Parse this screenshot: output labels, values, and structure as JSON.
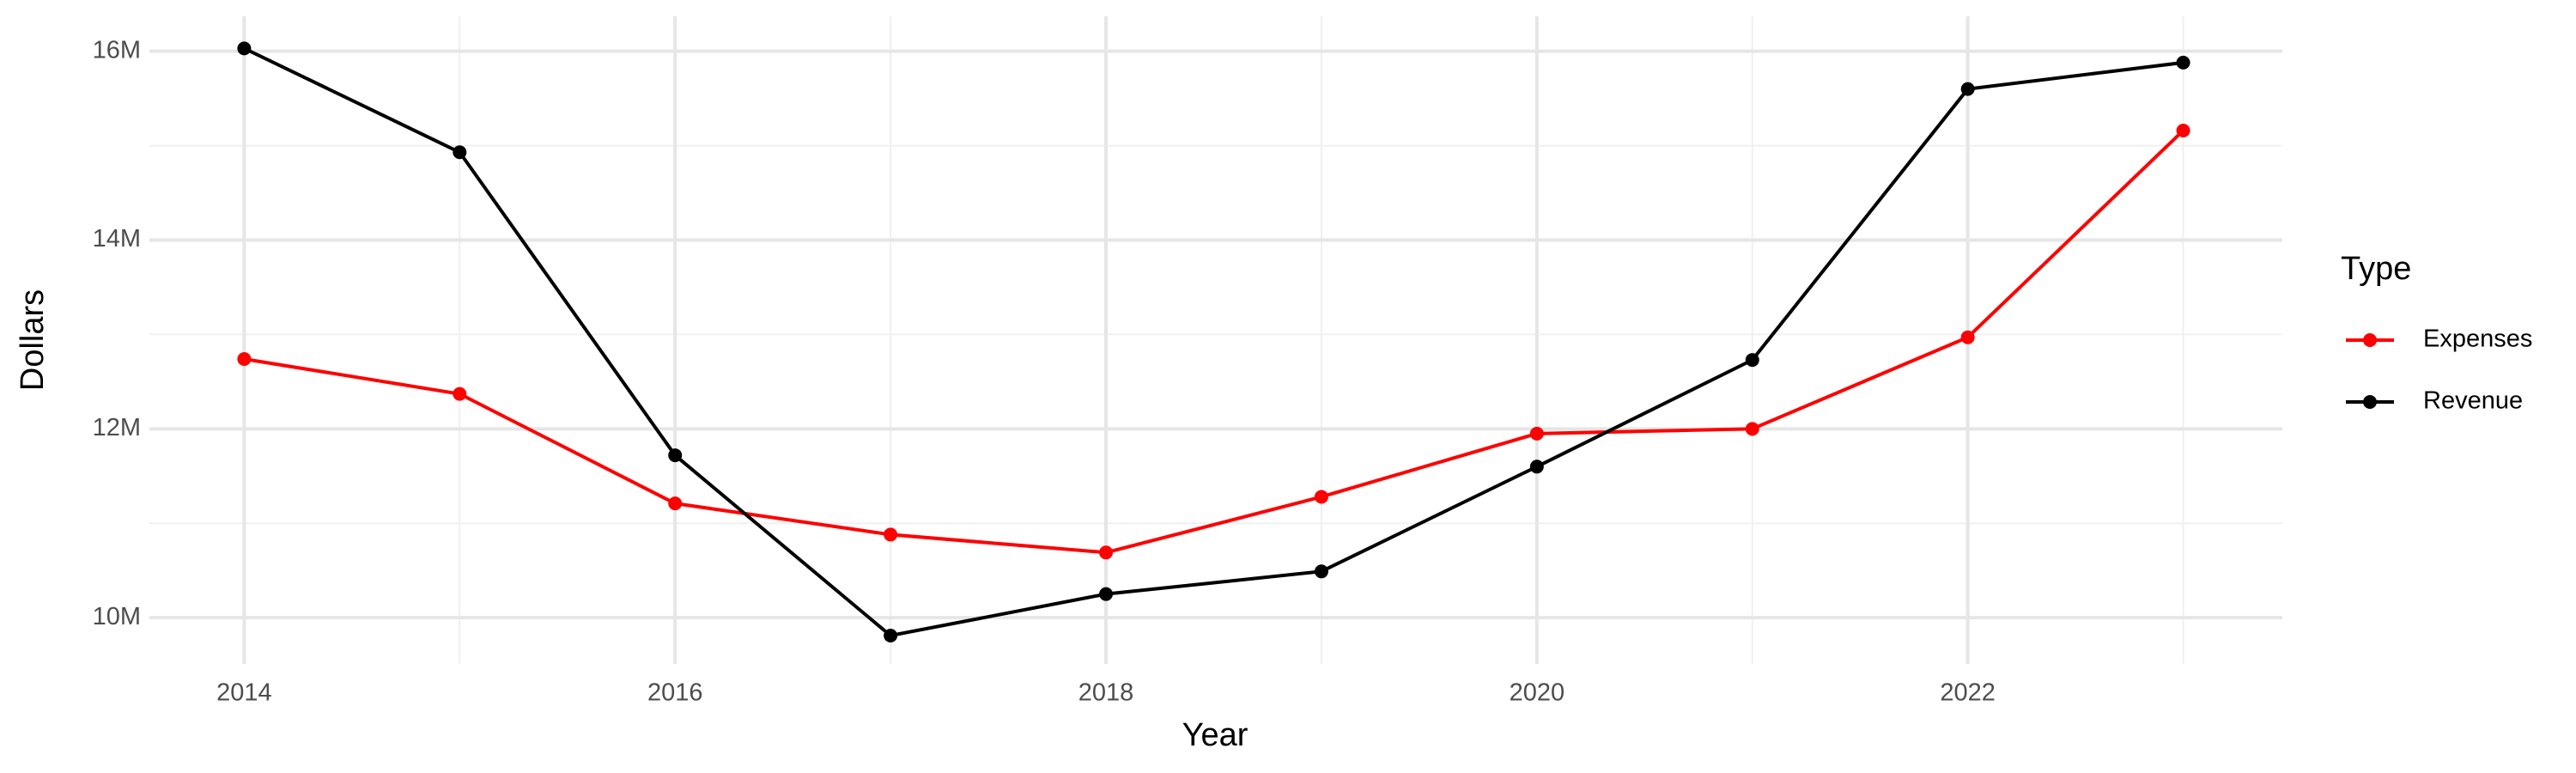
{
  "chart_data": {
    "type": "line",
    "x_label": "Year",
    "y_label": "Dollars",
    "legend_title": "Type",
    "legend_position": "right",
    "x": [
      2014,
      2015,
      2016,
      2017,
      2018,
      2019,
      2020,
      2021,
      2022,
      2023
    ],
    "series": [
      {
        "name": "Expenses",
        "color": "#ff0000",
        "values": [
          12740000,
          12370000,
          11210000,
          10880000,
          10690000,
          11280000,
          11950000,
          12000000,
          12970000,
          15160000
        ]
      },
      {
        "name": "Revenue",
        "color": "#000000",
        "values": [
          16030000,
          14930000,
          11720000,
          9810000,
          10250000,
          10490000,
          11600000,
          12730000,
          15600000,
          15880000
        ]
      }
    ],
    "xlim": [
      2013.56,
      2023.46
    ],
    "ylim": [
      9510000,
      16370000
    ],
    "xticks": [
      2014,
      2016,
      2018,
      2020,
      2022
    ],
    "yticks": [
      {
        "value": 10000000,
        "label": "10M"
      },
      {
        "value": 12000000,
        "label": "12M"
      },
      {
        "value": 14000000,
        "label": "14M"
      },
      {
        "value": 16000000,
        "label": "16M"
      }
    ],
    "minor_xticks": [
      2015,
      2017,
      2019,
      2021,
      2023
    ],
    "minor_yticks": [
      11000000,
      13000000,
      15000000
    ],
    "grid": true
  }
}
